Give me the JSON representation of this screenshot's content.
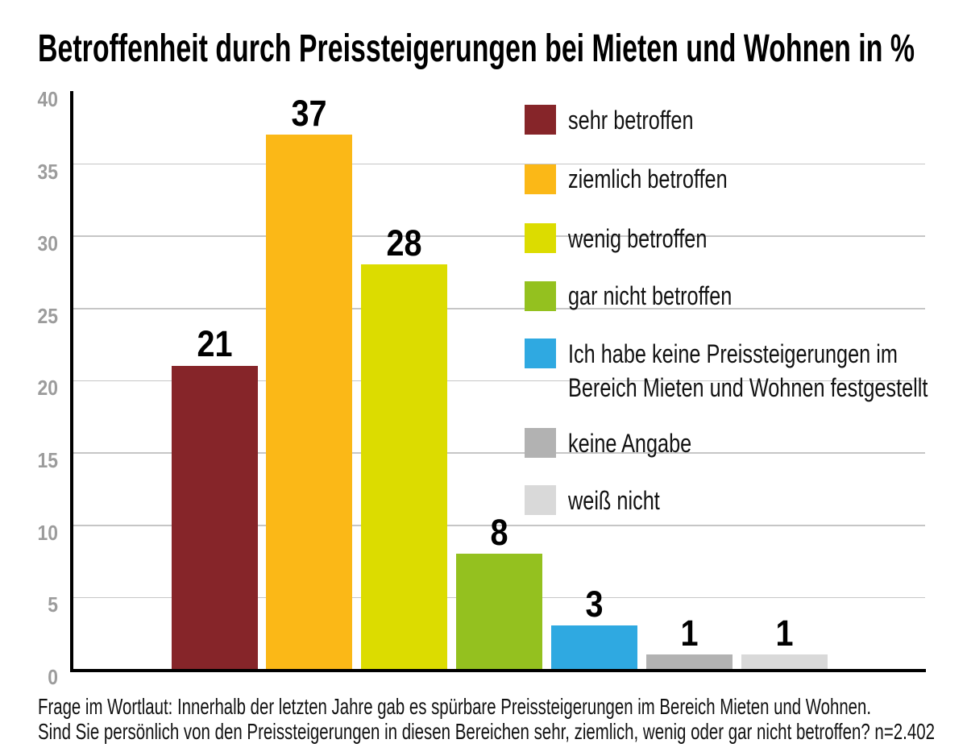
{
  "title": "Betroffenheit durch Preissteigerungen bei Mieten und Wohnen in %",
  "chart_data": {
    "type": "bar",
    "title": "Betroffenheit durch Preissteigerungen bei Mieten und Wohnen in %",
    "categories": [
      "sehr betroffen",
      "ziemlich betroffen",
      "wenig betroffen",
      "gar nicht betroffen",
      "Ich habe keine Preissteigerungen im Bereich Mieten und Wohnen festgestellt",
      "keine Angabe",
      "weiß nicht"
    ],
    "values": [
      21,
      37,
      28,
      8,
      3,
      1,
      1
    ],
    "colors": [
      "#862529",
      "#FBB817",
      "#DCDC00",
      "#94C11F",
      "#2FA9E1",
      "#B2B2B2",
      "#D9D9D9"
    ],
    "value_labels": [
      "21",
      "37",
      "28",
      "8",
      "3",
      "1",
      "1"
    ],
    "ylim": [
      0,
      40
    ],
    "yticks": [
      0,
      5,
      10,
      15,
      20,
      25,
      30,
      35,
      40
    ],
    "grid": true,
    "legend_position": "right",
    "axis_color": "#000000",
    "gridline_color": "#c6c6c6",
    "tick_label_color": "#9c9c9c"
  },
  "legend": {
    "items": [
      {
        "lines": [
          "sehr betroffen"
        ],
        "color": "#862529"
      },
      {
        "lines": [
          "ziemlich betroffen"
        ],
        "color": "#FBB817"
      },
      {
        "lines": [
          "wenig betroffen"
        ],
        "color": "#DCDC00"
      },
      {
        "lines": [
          "gar nicht betroffen"
        ],
        "color": "#94C11F"
      },
      {
        "lines": [
          "Ich habe keine Preissteigerungen im",
          "Bereich Mieten und Wohnen festgestellt"
        ],
        "color": "#2FA9E1"
      },
      {
        "lines": [
          "keine Angabe"
        ],
        "color": "#B2B2B2"
      },
      {
        "lines": [
          "weiß nicht"
        ],
        "color": "#D9D9D9"
      }
    ]
  },
  "footnote": {
    "line1": "Frage im Wortlaut: Innerhalb der letzten Jahre gab es spürbare Preissteigerungen im Bereich Mieten und Wohnen.",
    "line2": "Sind Sie persönlich von den Preissteigerungen in diesen Bereichen sehr, ziemlich, wenig oder gar nicht betroffen? n=2.402"
  }
}
